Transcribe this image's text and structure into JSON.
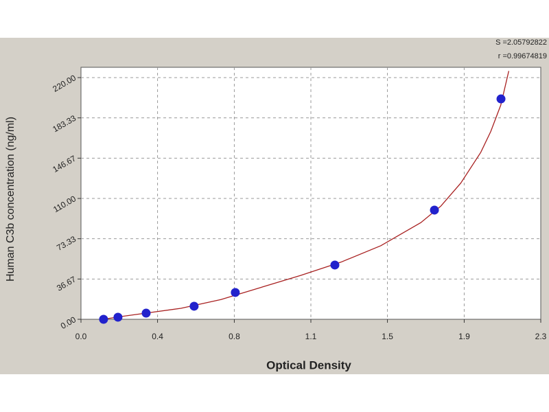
{
  "chart_data": {
    "type": "scatter",
    "xlabel": "Optical Density",
    "ylabel": "Human C3b concentration (ng/ml)",
    "annotations": [
      "S =2.05792822",
      "r =0.99674819"
    ],
    "xlim": [
      0,
      2.3
    ],
    "xticks": [
      {
        "value": 0,
        "label": "0.0"
      },
      {
        "value": 0.383,
        "label": "0.4"
      },
      {
        "value": 0.767,
        "label": "0.8"
      },
      {
        "value": 1.15,
        "label": "1.1"
      },
      {
        "value": 1.533,
        "label": "1.5"
      },
      {
        "value": 1.917,
        "label": "1.9"
      },
      2.3
    ],
    "ylim": [
      0,
      220
    ],
    "yticks": [
      {
        "value": 0,
        "label": "0.00"
      },
      36.67,
      73.33,
      {
        "value": 110,
        "label": "110.00"
      },
      146.67,
      183.33,
      {
        "value": 220,
        "label": "220.00"
      }
    ],
    "grid": true,
    "points": {
      "color": "#2222cc",
      "x": [
        0.113,
        0.185,
        0.326,
        0.566,
        0.772,
        1.27,
        1.768,
        2.101
      ],
      "y": [
        0,
        1.9,
        5.6,
        11.9,
        24.4,
        49.4,
        99.4,
        200.6
      ]
    },
    "fit": {
      "color": "#a82020",
      "x": [
        0.11,
        0.2,
        0.3,
        0.5,
        0.7,
        0.9,
        1.1,
        1.3,
        1.5,
        1.7,
        1.8,
        1.9,
        2.0,
        2.05,
        2.1,
        2.14
      ],
      "y": [
        0,
        2.5,
        5,
        10,
        18,
        29,
        40,
        52,
        67,
        88,
        103,
        124,
        152,
        171,
        195,
        226
      ]
    }
  }
}
